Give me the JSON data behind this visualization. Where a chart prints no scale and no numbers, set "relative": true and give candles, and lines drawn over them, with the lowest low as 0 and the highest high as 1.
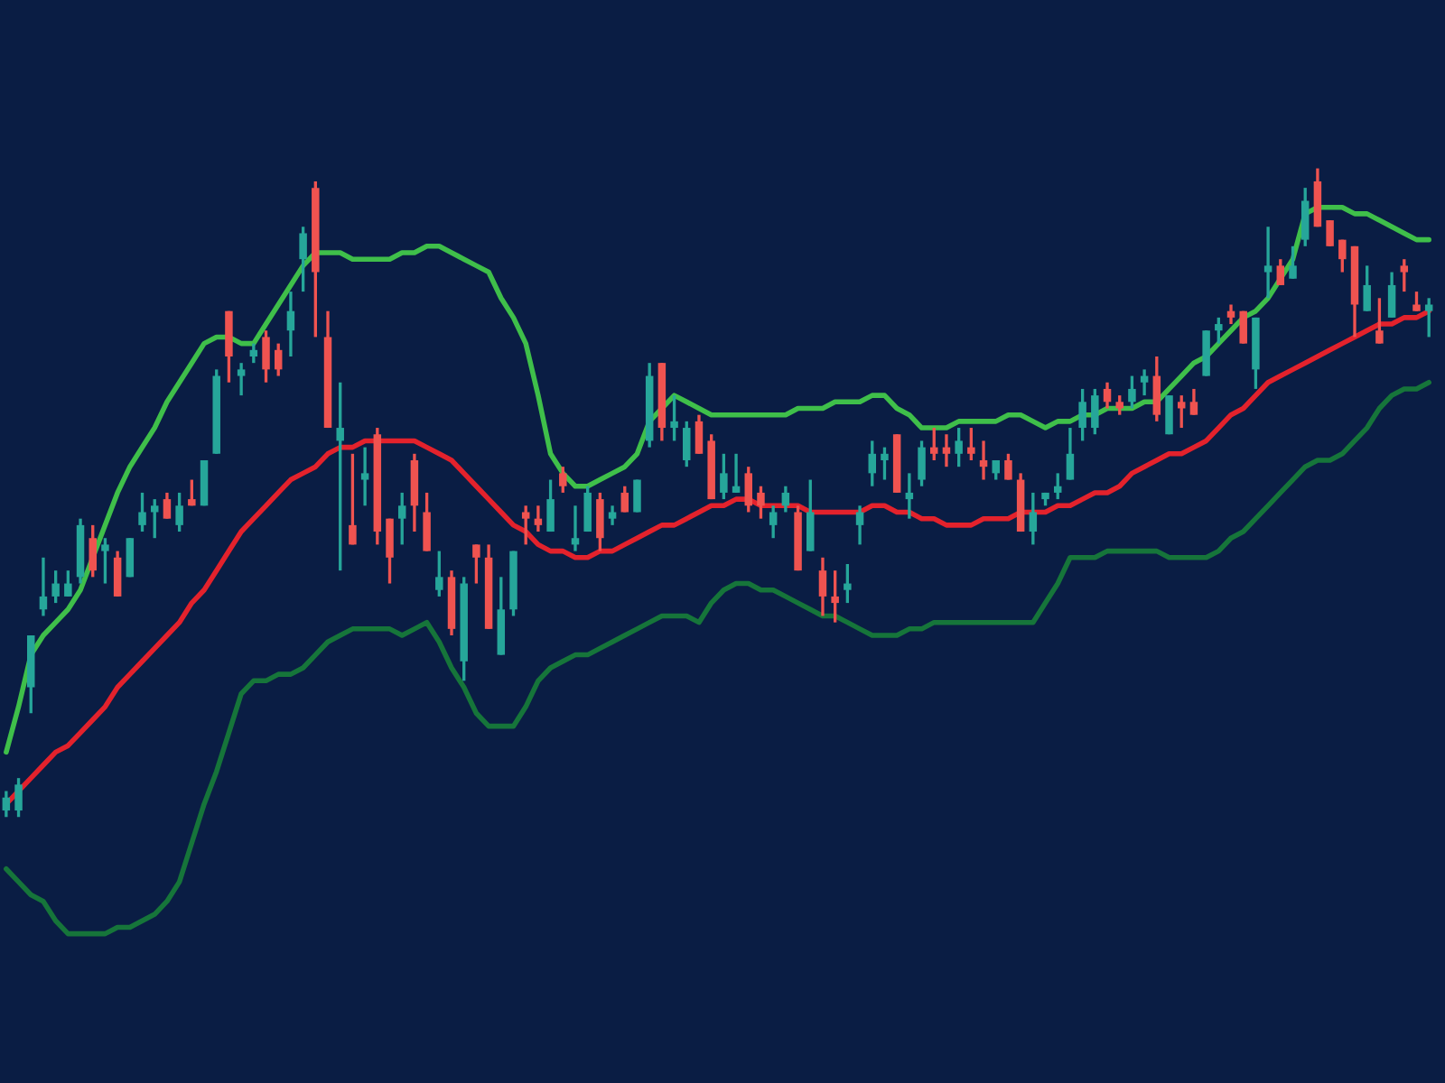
{
  "chart_data": {
    "type": "candlestick",
    "relative": true,
    "categories": [
      null,
      null,
      null,
      null,
      null,
      null,
      null,
      null,
      null,
      null,
      null,
      null,
      null,
      null,
      null,
      null,
      null,
      null,
      null,
      null,
      null,
      null,
      null,
      null,
      null,
      null,
      null,
      null,
      null,
      null,
      null,
      null,
      null,
      null,
      null,
      null,
      null,
      null,
      null,
      null,
      null,
      null,
      null,
      null,
      null,
      null,
      null,
      null,
      null,
      null,
      null,
      null,
      null,
      null,
      null,
      null,
      null,
      null,
      null,
      null,
      null,
      null,
      null,
      null,
      null,
      null,
      null,
      null,
      null,
      null,
      null,
      null,
      null,
      null,
      null,
      null,
      null,
      null,
      null,
      null,
      null,
      null,
      null,
      null,
      null,
      null,
      null,
      null,
      null,
      null,
      null,
      null,
      null,
      null,
      null,
      null,
      null,
      null,
      null,
      null,
      null,
      null,
      null,
      null,
      null,
      null,
      null,
      null,
      null,
      null,
      null,
      null,
      null,
      null,
      null,
      null
    ],
    "ohlc": [
      [
        0.01,
        0.04,
        0.0,
        0.03
      ],
      [
        0.01,
        0.06,
        0.0,
        0.05
      ],
      [
        0.2,
        0.28,
        0.16,
        0.28
      ],
      [
        0.32,
        0.4,
        0.31,
        0.34
      ],
      [
        0.34,
        0.38,
        0.33,
        0.36
      ],
      [
        0.34,
        0.38,
        0.34,
        0.36
      ],
      [
        0.37,
        0.46,
        0.36,
        0.45
      ],
      [
        0.43,
        0.45,
        0.37,
        0.38
      ],
      [
        0.41,
        0.43,
        0.36,
        0.42
      ],
      [
        0.4,
        0.41,
        0.34,
        0.34
      ],
      [
        0.37,
        0.43,
        0.37,
        0.43
      ],
      [
        0.45,
        0.5,
        0.44,
        0.47
      ],
      [
        0.47,
        0.49,
        0.43,
        0.48
      ],
      [
        0.49,
        0.5,
        0.46,
        0.46
      ],
      [
        0.45,
        0.5,
        0.44,
        0.48
      ],
      [
        0.49,
        0.52,
        0.48,
        0.48
      ],
      [
        0.48,
        0.55,
        0.48,
        0.55
      ],
      [
        0.56,
        0.69,
        0.56,
        0.68
      ],
      [
        0.78,
        0.78,
        0.67,
        0.71
      ],
      [
        0.68,
        0.7,
        0.65,
        0.69
      ],
      [
        0.71,
        0.73,
        0.7,
        0.72
      ],
      [
        0.74,
        0.75,
        0.67,
        0.69
      ],
      [
        0.72,
        0.73,
        0.68,
        0.69
      ],
      [
        0.75,
        0.81,
        0.71,
        0.78
      ],
      [
        0.86,
        0.91,
        0.81,
        0.9
      ],
      [
        0.97,
        0.98,
        0.74,
        0.84
      ],
      [
        0.74,
        0.78,
        0.6,
        0.6
      ],
      [
        0.58,
        0.67,
        0.38,
        0.6
      ],
      [
        0.45,
        0.56,
        0.42,
        0.42
      ],
      [
        0.52,
        0.57,
        0.48,
        0.53
      ],
      [
        0.59,
        0.6,
        0.42,
        0.44
      ],
      [
        0.46,
        0.46,
        0.36,
        0.4
      ],
      [
        0.46,
        0.5,
        0.42,
        0.48
      ],
      [
        0.55,
        0.56,
        0.44,
        0.48
      ],
      [
        0.47,
        0.5,
        0.41,
        0.41
      ],
      [
        0.35,
        0.41,
        0.34,
        0.37
      ],
      [
        0.37,
        0.38,
        0.28,
        0.29
      ],
      [
        0.24,
        0.37,
        0.21,
        0.36
      ],
      [
        0.42,
        0.42,
        0.36,
        0.4
      ],
      [
        0.4,
        0.42,
        0.29,
        0.29
      ],
      [
        0.25,
        0.37,
        0.25,
        0.32
      ],
      [
        0.32,
        0.41,
        0.31,
        0.41
      ],
      [
        0.47,
        0.48,
        0.42,
        0.46
      ],
      [
        0.46,
        0.48,
        0.44,
        0.45
      ],
      [
        0.44,
        0.52,
        0.44,
        0.49
      ],
      [
        0.53,
        0.54,
        0.5,
        0.51
      ],
      [
        0.42,
        0.48,
        0.41,
        0.43
      ],
      [
        0.44,
        0.51,
        0.44,
        0.5
      ],
      [
        0.49,
        0.5,
        0.41,
        0.43
      ],
      [
        0.46,
        0.48,
        0.45,
        0.47
      ],
      [
        0.5,
        0.51,
        0.47,
        0.47
      ],
      [
        0.47,
        0.52,
        0.47,
        0.52
      ],
      [
        0.58,
        0.7,
        0.57,
        0.68
      ],
      [
        0.7,
        0.7,
        0.58,
        0.6
      ],
      [
        0.6,
        0.65,
        0.58,
        0.61
      ],
      [
        0.55,
        0.61,
        0.54,
        0.6
      ],
      [
        0.61,
        0.62,
        0.56,
        0.56
      ],
      [
        0.58,
        0.59,
        0.49,
        0.49
      ],
      [
        0.5,
        0.56,
        0.49,
        0.53
      ],
      [
        0.5,
        0.56,
        0.5,
        0.51
      ],
      [
        0.53,
        0.54,
        0.47,
        0.48
      ],
      [
        0.5,
        0.51,
        0.46,
        0.48
      ],
      [
        0.45,
        0.48,
        0.43,
        0.47
      ],
      [
        0.48,
        0.51,
        0.47,
        0.5
      ],
      [
        0.47,
        0.48,
        0.38,
        0.38
      ],
      [
        0.41,
        0.52,
        0.41,
        0.47
      ],
      [
        0.38,
        0.4,
        0.31,
        0.34
      ],
      [
        0.34,
        0.38,
        0.3,
        0.33
      ],
      [
        0.35,
        0.39,
        0.33,
        0.36
      ],
      [
        0.45,
        0.48,
        0.42,
        0.47
      ],
      [
        0.53,
        0.58,
        0.51,
        0.56
      ],
      [
        0.55,
        0.57,
        0.52,
        0.56
      ],
      [
        0.59,
        0.59,
        0.5,
        0.5
      ],
      [
        0.49,
        0.53,
        0.46,
        0.5
      ],
      [
        0.52,
        0.58,
        0.51,
        0.57
      ],
      [
        0.57,
        0.6,
        0.55,
        0.56
      ],
      [
        0.57,
        0.59,
        0.54,
        0.56
      ],
      [
        0.56,
        0.6,
        0.54,
        0.58
      ],
      [
        0.57,
        0.6,
        0.55,
        0.56
      ],
      [
        0.55,
        0.58,
        0.52,
        0.54
      ],
      [
        0.53,
        0.55,
        0.52,
        0.55
      ],
      [
        0.55,
        0.56,
        0.52,
        0.52
      ],
      [
        0.52,
        0.53,
        0.44,
        0.44
      ],
      [
        0.44,
        0.5,
        0.42,
        0.47
      ],
      [
        0.49,
        0.5,
        0.48,
        0.5
      ],
      [
        0.5,
        0.53,
        0.49,
        0.51
      ],
      [
        0.52,
        0.6,
        0.52,
        0.56
      ],
      [
        0.6,
        0.66,
        0.58,
        0.64
      ],
      [
        0.6,
        0.66,
        0.59,
        0.65
      ],
      [
        0.66,
        0.67,
        0.63,
        0.64
      ],
      [
        0.64,
        0.65,
        0.62,
        0.63
      ],
      [
        0.64,
        0.68,
        0.63,
        0.66
      ],
      [
        0.67,
        0.69,
        0.65,
        0.68
      ],
      [
        0.68,
        0.71,
        0.61,
        0.62
      ],
      [
        0.59,
        0.65,
        0.59,
        0.65
      ],
      [
        0.64,
        0.65,
        0.6,
        0.63
      ],
      [
        0.64,
        0.66,
        0.62,
        0.62
      ],
      [
        0.68,
        0.75,
        0.68,
        0.75
      ],
      [
        0.75,
        0.77,
        0.73,
        0.76
      ],
      [
        0.78,
        0.79,
        0.76,
        0.77
      ],
      [
        0.78,
        0.78,
        0.73,
        0.73
      ],
      [
        0.69,
        0.77,
        0.66,
        0.77
      ],
      [
        0.84,
        0.91,
        0.8,
        0.85
      ],
      [
        0.85,
        0.86,
        0.82,
        0.82
      ],
      [
        0.83,
        0.88,
        0.83,
        0.85
      ],
      [
        0.89,
        0.97,
        0.88,
        0.95
      ],
      [
        0.98,
        1.0,
        0.91,
        0.91
      ],
      [
        0.92,
        0.92,
        0.88,
        0.88
      ],
      [
        0.89,
        0.89,
        0.84,
        0.86
      ],
      [
        0.88,
        0.88,
        0.74,
        0.79
      ],
      [
        0.78,
        0.85,
        0.78,
        0.82
      ],
      [
        0.75,
        0.8,
        0.73,
        0.73
      ],
      [
        0.77,
        0.84,
        0.77,
        0.82
      ],
      [
        0.85,
        0.86,
        0.81,
        0.84
      ],
      [
        0.79,
        0.81,
        0.78,
        0.78
      ],
      [
        0.78,
        0.8,
        0.74,
        0.79
      ]
    ],
    "colors": [
      "#26a69a",
      "#26a69a",
      "#26a69a",
      "#26a69a",
      "#26a69a",
      "#26a69a",
      "#26a69a",
      "#ef5350",
      "#26a69a",
      "#ef5350",
      "#26a69a",
      "#26a69a",
      "#26a69a",
      "#ef5350",
      "#26a69a",
      "#ef5350",
      "#26a69a",
      "#26a69a",
      "#ef5350",
      "#26a69a",
      "#26a69a",
      "#ef5350",
      "#ef5350",
      "#26a69a",
      "#26a69a",
      "#ef5350",
      "#ef5350",
      "#26a69a",
      "#ef5350",
      "#26a69a",
      "#ef5350",
      "#ef5350",
      "#26a69a",
      "#ef5350",
      "#ef5350",
      "#26a69a",
      "#ef5350",
      "#26a69a",
      "#ef5350",
      "#ef5350",
      "#26a69a",
      "#26a69a",
      "#ef5350",
      "#ef5350",
      "#26a69a",
      "#ef5350",
      "#26a69a",
      "#26a69a",
      "#ef5350",
      "#26a69a",
      "#ef5350",
      "#26a69a",
      "#26a69a",
      "#ef5350",
      "#26a69a",
      "#26a69a",
      "#ef5350",
      "#ef5350",
      "#26a69a",
      "#26a69a",
      "#ef5350",
      "#ef5350",
      "#26a69a",
      "#26a69a",
      "#ef5350",
      "#26a69a",
      "#ef5350",
      "#ef5350",
      "#26a69a",
      "#26a69a",
      "#26a69a",
      "#26a69a",
      "#ef5350",
      "#26a69a",
      "#26a69a",
      "#ef5350",
      "#ef5350",
      "#26a69a",
      "#ef5350",
      "#ef5350",
      "#26a69a",
      "#ef5350",
      "#ef5350",
      "#26a69a",
      "#26a69a",
      "#26a69a",
      "#26a69a",
      "#26a69a",
      "#26a69a",
      "#ef5350",
      "#ef5350",
      "#26a69a",
      "#26a69a",
      "#ef5350",
      "#26a69a",
      "#ef5350",
      "#ef5350",
      "#26a69a",
      "#26a69a",
      "#ef5350",
      "#ef5350",
      "#26a69a",
      "#26a69a",
      "#ef5350",
      "#26a69a",
      "#26a69a",
      "#ef5350",
      "#ef5350",
      "#ef5350",
      "#ef5350",
      "#26a69a",
      "#ef5350",
      "#26a69a",
      "#ef5350",
      "#ef5350",
      "#26a69a"
    ],
    "series": [
      {
        "type": "line",
        "color": "#3fbf4a",
        "values": [
          0.1,
          0.17,
          0.25,
          0.28,
          0.3,
          0.32,
          0.35,
          0.4,
          0.45,
          0.5,
          0.54,
          0.57,
          0.6,
          0.64,
          0.67,
          0.7,
          0.73,
          0.74,
          0.74,
          0.73,
          0.73,
          0.76,
          0.79,
          0.82,
          0.85,
          0.87,
          0.87,
          0.87,
          0.86,
          0.86,
          0.86,
          0.86,
          0.87,
          0.87,
          0.88,
          0.88,
          0.87,
          0.86,
          0.85,
          0.84,
          0.8,
          0.77,
          0.73,
          0.65,
          0.56,
          0.53,
          0.51,
          0.51,
          0.52,
          0.53,
          0.54,
          0.56,
          0.61,
          0.63,
          0.65,
          0.64,
          0.63,
          0.62,
          0.62,
          0.62,
          0.62,
          0.62,
          0.62,
          0.62,
          0.63,
          0.63,
          0.63,
          0.64,
          0.64,
          0.64,
          0.65,
          0.65,
          0.63,
          0.62,
          0.6,
          0.6,
          0.6,
          0.61,
          0.61,
          0.61,
          0.61,
          0.62,
          0.62,
          0.61,
          0.6,
          0.61,
          0.61,
          0.62,
          0.62,
          0.63,
          0.63,
          0.63,
          0.64,
          0.64,
          0.66,
          0.68,
          0.7,
          0.71,
          0.73,
          0.75,
          0.77,
          0.78,
          0.8,
          0.83,
          0.86,
          0.93,
          0.94,
          0.94,
          0.94,
          0.93,
          0.93,
          0.92,
          0.91,
          0.9,
          0.89,
          0.89
        ]
      },
      {
        "type": "line",
        "color": "#e3222c",
        "values": [
          0.02,
          0.04,
          0.06,
          0.08,
          0.1,
          0.11,
          0.13,
          0.15,
          0.17,
          0.2,
          0.22,
          0.24,
          0.26,
          0.28,
          0.3,
          0.33,
          0.35,
          0.38,
          0.41,
          0.44,
          0.46,
          0.48,
          0.5,
          0.52,
          0.53,
          0.54,
          0.56,
          0.57,
          0.57,
          0.58,
          0.58,
          0.58,
          0.58,
          0.58,
          0.57,
          0.56,
          0.55,
          0.53,
          0.51,
          0.49,
          0.47,
          0.45,
          0.44,
          0.42,
          0.41,
          0.41,
          0.4,
          0.4,
          0.41,
          0.41,
          0.42,
          0.43,
          0.44,
          0.45,
          0.45,
          0.46,
          0.47,
          0.48,
          0.48,
          0.49,
          0.49,
          0.48,
          0.48,
          0.48,
          0.48,
          0.47,
          0.47,
          0.47,
          0.47,
          0.47,
          0.48,
          0.48,
          0.47,
          0.47,
          0.46,
          0.46,
          0.45,
          0.45,
          0.45,
          0.46,
          0.46,
          0.46,
          0.47,
          0.47,
          0.47,
          0.48,
          0.48,
          0.49,
          0.5,
          0.5,
          0.51,
          0.53,
          0.54,
          0.55,
          0.56,
          0.56,
          0.57,
          0.58,
          0.6,
          0.62,
          0.63,
          0.65,
          0.67,
          0.68,
          0.69,
          0.7,
          0.71,
          0.72,
          0.73,
          0.74,
          0.75,
          0.76,
          0.76,
          0.77,
          0.77,
          0.78
        ]
      },
      {
        "type": "line",
        "color": "#16753a",
        "values": [
          -0.08,
          -0.1,
          -0.12,
          -0.13,
          -0.16,
          -0.18,
          -0.18,
          -0.18,
          -0.18,
          -0.17,
          -0.17,
          -0.16,
          -0.15,
          -0.13,
          -0.1,
          -0.04,
          0.02,
          0.07,
          0.13,
          0.19,
          0.21,
          0.21,
          0.22,
          0.22,
          0.23,
          0.25,
          0.27,
          0.28,
          0.29,
          0.29,
          0.29,
          0.29,
          0.28,
          0.29,
          0.3,
          0.27,
          0.23,
          0.2,
          0.16,
          0.14,
          0.14,
          0.14,
          0.17,
          0.21,
          0.23,
          0.24,
          0.25,
          0.25,
          0.26,
          0.27,
          0.28,
          0.29,
          0.3,
          0.31,
          0.31,
          0.31,
          0.3,
          0.33,
          0.35,
          0.36,
          0.36,
          0.35,
          0.35,
          0.34,
          0.33,
          0.32,
          0.31,
          0.31,
          0.3,
          0.29,
          0.28,
          0.28,
          0.28,
          0.29,
          0.29,
          0.3,
          0.3,
          0.3,
          0.3,
          0.3,
          0.3,
          0.3,
          0.3,
          0.3,
          0.33,
          0.36,
          0.4,
          0.4,
          0.4,
          0.41,
          0.41,
          0.41,
          0.41,
          0.41,
          0.4,
          0.4,
          0.4,
          0.4,
          0.41,
          0.43,
          0.44,
          0.46,
          0.48,
          0.5,
          0.52,
          0.54,
          0.55,
          0.55,
          0.56,
          0.58,
          0.6,
          0.63,
          0.65,
          0.66,
          0.66,
          0.67
        ]
      }
    ]
  }
}
